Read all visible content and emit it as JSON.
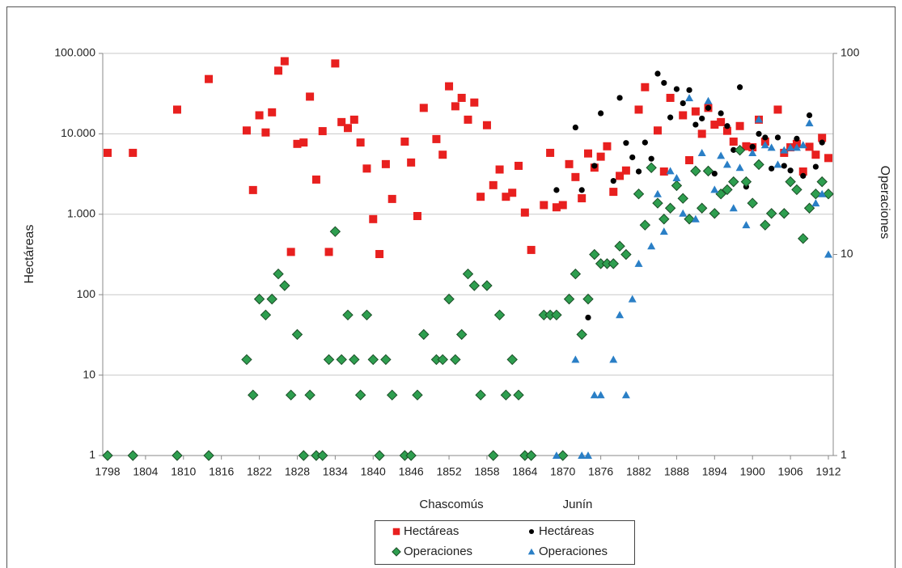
{
  "chart_data": {
    "type": "scatter",
    "y_label": "Hectáreas",
    "y2_label": "Operaciones",
    "legend_groups": [
      "Chascomús",
      "Junín"
    ],
    "log_scale": true,
    "grid": true,
    "legend": "bottom",
    "xlim": [
      1798,
      1912
    ],
    "xticks": [
      1798,
      1804,
      1810,
      1816,
      1822,
      1828,
      1834,
      1840,
      1846,
      1852,
      1858,
      1864,
      1870,
      1876,
      1882,
      1888,
      1894,
      1900,
      1906,
      1912
    ],
    "ylim": [
      1,
      100000
    ],
    "yticks": [
      1,
      10,
      100,
      {
        "value": 1000,
        "label": "1.000"
      },
      {
        "value": 10000,
        "label": "10.000"
      },
      {
        "value": 100000,
        "label": "100.000"
      }
    ],
    "y2lim": [
      1,
      100
    ],
    "y2ticks": [
      1,
      10,
      100
    ],
    "series": [
      {
        "name": "Hectáreas",
        "color": "#e8201f",
        "marker": "square",
        "x": [
          1798,
          1802,
          1809,
          1814,
          1820,
          1821,
          1822,
          1823,
          1824,
          1825,
          1826,
          1827,
          1828,
          1829,
          1830,
          1831,
          1832,
          1833,
          1834,
          1835,
          1836,
          1837,
          1838,
          1839,
          1840,
          1841,
          1842,
          1843,
          1845,
          1846,
          1847,
          1848,
          1850,
          1851,
          1852,
          1853,
          1854,
          1855,
          1856,
          1857,
          1858,
          1859,
          1860,
          1861,
          1862,
          1863,
          1864,
          1865,
          1867,
          1868,
          1869,
          1870,
          1871,
          1872,
          1873,
          1874,
          1875,
          1876,
          1877,
          1878,
          1879,
          1880,
          1882,
          1883,
          1885,
          1886,
          1887,
          1889,
          1890,
          1891,
          1892,
          1893,
          1894,
          1895,
          1896,
          1897,
          1898,
          1899,
          1900,
          1901,
          1902,
          1904,
          1905,
          1906,
          1907,
          1908,
          1909,
          1910,
          1911,
          1912
        ],
        "values": [
          5800,
          5800,
          20000,
          48000,
          11000,
          2000,
          17000,
          10400,
          18500,
          61000,
          80000,
          340,
          7500,
          7800,
          29000,
          2700,
          10800,
          340,
          75000,
          14000,
          11800,
          15000,
          7800,
          3700,
          870,
          320,
          4200,
          1550,
          8000,
          4400,
          950,
          21000,
          8600,
          5500,
          39000,
          22000,
          28000,
          15000,
          24500,
          1650,
          12800,
          2300,
          3600,
          1650,
          1850,
          4000,
          1050,
          360,
          1300,
          5800,
          1220,
          1300,
          4200,
          2900,
          1580,
          5700,
          3800,
          5200,
          7000,
          1900,
          3000,
          3500,
          20000,
          38000,
          11000,
          3400,
          28000,
          17000,
          4700,
          19000,
          10000,
          21000,
          13000,
          14000,
          10900,
          8000,
          12500,
          7000,
          6800,
          15000,
          8000,
          20000,
          5800,
          6800,
          7500,
          3400,
          6900,
          5500,
          8900,
          5000
        ]
      },
      {
        "name": "Hectáreas",
        "color": "#000000",
        "marker": "circle",
        "x": [
          1869,
          1872,
          1873,
          1874,
          1875,
          1876,
          1878,
          1879,
          1880,
          1881,
          1882,
          1883,
          1884,
          1885,
          1886,
          1887,
          1888,
          1889,
          1890,
          1891,
          1892,
          1893,
          1894,
          1895,
          1896,
          1897,
          1898,
          1899,
          1900,
          1901,
          1902,
          1903,
          1904,
          1905,
          1906,
          1907,
          1908,
          1909,
          1910,
          1911
        ],
        "values": [
          2000,
          12000,
          2000,
          52,
          4000,
          18000,
          2600,
          28000,
          7700,
          5100,
          3400,
          7800,
          4900,
          56000,
          43000,
          16000,
          36000,
          24000,
          35000,
          13000,
          15500,
          21000,
          3200,
          18000,
          12500,
          6300,
          38000,
          2200,
          6900,
          10000,
          9000,
          3700,
          9000,
          4000,
          3500,
          8700,
          3000,
          17000,
          3900,
          7800
        ]
      },
      {
        "name": "Operaciones",
        "color": "#2e9e4f",
        "marker": "diamond",
        "axis": "y2",
        "x": [
          1798,
          1802,
          1809,
          1814,
          1820,
          1821,
          1822,
          1823,
          1824,
          1825,
          1826,
          1827,
          1828,
          1829,
          1830,
          1831,
          1832,
          1833,
          1834,
          1835,
          1836,
          1837,
          1838,
          1839,
          1840,
          1841,
          1842,
          1843,
          1845,
          1846,
          1847,
          1848,
          1850,
          1851,
          1852,
          1853,
          1854,
          1855,
          1856,
          1857,
          1858,
          1859,
          1860,
          1861,
          1862,
          1863,
          1864,
          1865,
          1867,
          1868,
          1869,
          1870,
          1871,
          1872,
          1873,
          1874,
          1875,
          1876,
          1877,
          1878,
          1879,
          1880,
          1882,
          1883,
          1884,
          1885,
          1886,
          1887,
          1888,
          1889,
          1890,
          1891,
          1892,
          1893,
          1894,
          1895,
          1896,
          1897,
          1898,
          1899,
          1900,
          1901,
          1902,
          1903,
          1905,
          1906,
          1907,
          1908,
          1909,
          1910,
          1911,
          1912
        ],
        "values": [
          1,
          1,
          1,
          1,
          3,
          2,
          6,
          5,
          6,
          8,
          7,
          2,
          4,
          1,
          2,
          1,
          1,
          3,
          13,
          3,
          5,
          3,
          2,
          5,
          3,
          1,
          3,
          2,
          1,
          1,
          2,
          4,
          3,
          3,
          6,
          3,
          4,
          8,
          7,
          2,
          7,
          1,
          5,
          2,
          3,
          2,
          1,
          1,
          5,
          5,
          5,
          1,
          6,
          8,
          4,
          6,
          10,
          9,
          9,
          9,
          11,
          10,
          20,
          14,
          27,
          18,
          15,
          17,
          22,
          19,
          15,
          26,
          17,
          26,
          16,
          20,
          21,
          23,
          33,
          23,
          18,
          28,
          14,
          16,
          16,
          23,
          21,
          12,
          17,
          20,
          23,
          20
        ]
      },
      {
        "name": "Operaciones",
        "color": "#2a7fc6",
        "marker": "triangle",
        "axis": "y2",
        "x": [
          1869,
          1872,
          1873,
          1874,
          1875,
          1876,
          1878,
          1879,
          1880,
          1881,
          1882,
          1884,
          1885,
          1886,
          1887,
          1888,
          1889,
          1890,
          1891,
          1892,
          1893,
          1894,
          1895,
          1896,
          1897,
          1898,
          1899,
          1900,
          1901,
          1902,
          1903,
          1904,
          1905,
          1906,
          1907,
          1908,
          1909,
          1910,
          1911,
          1912
        ],
        "values": [
          1,
          3,
          1,
          1,
          2,
          2,
          3,
          5,
          2,
          6,
          9,
          11,
          20,
          13,
          26,
          24,
          16,
          60,
          15,
          32,
          58,
          21,
          31,
          28,
          17,
          27,
          14,
          32,
          47,
          35,
          34,
          28,
          33,
          34,
          34,
          35,
          45,
          18,
          20,
          10
        ]
      }
    ]
  }
}
